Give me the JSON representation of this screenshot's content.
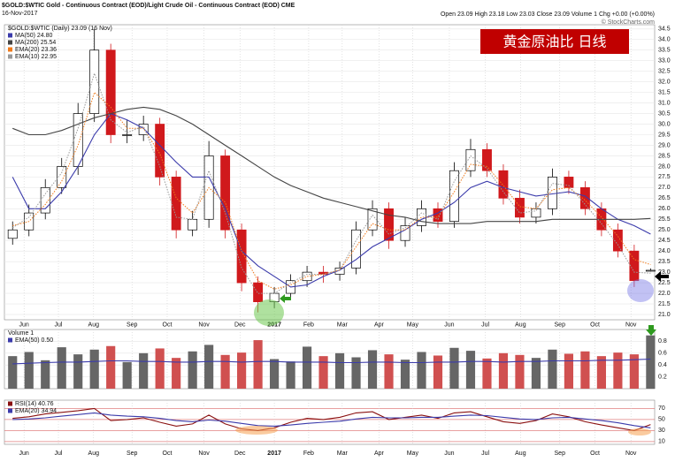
{
  "header": {
    "title": "$GOLD:$WTIC Gold - Continuous Contract (EOD)/Light Crude Oil - Continuous Contract (EOD) CME",
    "date": "16-Nov-2017",
    "quote": "Open 23.09  High 23.18  Low 23.03  Close 23.09  Volume 1  Chg +0.00 (+0.00%)",
    "credit": "© StockCharts.com"
  },
  "banner": "黄金原油比  日线",
  "chart_data": [
    {
      "type": "candlestick",
      "legend_title": "$GOLD:$WTIC (Daily) 23.09 (16 Nov)",
      "up_color": "#000000",
      "down_color": "#d0191c",
      "x": [
        1,
        3,
        5,
        7,
        9,
        11,
        13,
        15,
        17,
        19,
        21,
        23,
        25,
        27,
        29,
        31,
        33,
        35,
        37,
        39,
        41,
        43,
        45,
        47,
        49,
        51,
        53,
        55,
        57,
        59,
        61,
        63,
        65,
        67,
        69,
        71,
        73,
        75,
        77,
        79
      ],
      "open": [
        24.6,
        25.0,
        25.8,
        27.0,
        28.0,
        30.5,
        33.5,
        29.5,
        29.5,
        30.0,
        27.5,
        25.0,
        25.5,
        28.5,
        25.0,
        22.5,
        21.6,
        22.0,
        22.6,
        23.0,
        22.9,
        23.2,
        25.0,
        26.0,
        24.5,
        25.2,
        26.0,
        25.4,
        27.8,
        28.8,
        27.8,
        26.5,
        25.6,
        26.0,
        27.5,
        27.0,
        26.0,
        25.0,
        24.0,
        23.09
      ],
      "high": [
        25.4,
        26.2,
        27.4,
        28.4,
        31.0,
        34.5,
        33.8,
        30.2,
        30.4,
        30.3,
        27.8,
        25.9,
        29.2,
        28.8,
        25.3,
        22.8,
        22.3,
        22.9,
        23.3,
        23.3,
        23.5,
        25.4,
        26.4,
        26.3,
        25.6,
        26.4,
        26.3,
        28.2,
        29.3,
        29.1,
        28.1,
        26.9,
        26.3,
        27.9,
        27.8,
        27.3,
        26.3,
        25.3,
        24.3,
        23.18
      ],
      "low": [
        24.3,
        24.7,
        25.5,
        26.7,
        27.6,
        30.1,
        29.1,
        29.1,
        29.2,
        27.1,
        24.6,
        24.7,
        25.1,
        24.6,
        22.1,
        21.1,
        21.3,
        21.7,
        22.3,
        22.5,
        22.6,
        22.9,
        24.7,
        24.1,
        24.2,
        24.9,
        25.1,
        25.1,
        27.5,
        27.5,
        26.2,
        25.3,
        25.3,
        25.7,
        26.7,
        25.7,
        24.7,
        23.7,
        22.3,
        23.03
      ],
      "close": [
        25.0,
        25.8,
        27.0,
        28.0,
        30.5,
        33.5,
        29.5,
        29.5,
        30.0,
        27.5,
        25.0,
        25.5,
        28.5,
        25.0,
        22.5,
        21.6,
        22.0,
        22.6,
        23.0,
        22.9,
        23.2,
        25.0,
        26.0,
        24.5,
        25.2,
        26.0,
        25.4,
        27.8,
        28.8,
        27.8,
        26.5,
        25.6,
        26.0,
        27.5,
        27.0,
        26.0,
        25.0,
        24.0,
        22.6,
        23.09
      ],
      "series": [
        {
          "name": "MA(50) 24.80",
          "color": "#3b3bab",
          "style": "solid",
          "values": [
            27.5,
            26.0,
            26.0,
            26.8,
            28.0,
            29.5,
            30.5,
            30.2,
            29.8,
            29.0,
            28.2,
            27.5,
            27.5,
            26.0,
            24.0,
            23.3,
            22.8,
            22.3,
            22.4,
            22.8,
            23.1,
            23.6,
            24.2,
            24.6,
            25.0,
            25.5,
            25.8,
            26.3,
            27.0,
            27.3,
            27.0,
            26.8,
            26.6,
            26.7,
            26.8,
            26.6,
            26.0,
            25.5,
            25.2,
            24.8
          ]
        },
        {
          "name": "MA(200) 25.54",
          "color": "#444444",
          "style": "solid",
          "values": [
            29.8,
            29.5,
            29.5,
            29.7,
            30.0,
            30.3,
            30.5,
            30.7,
            30.8,
            30.7,
            30.4,
            30.0,
            29.5,
            29.0,
            28.5,
            28.0,
            27.5,
            27.1,
            26.8,
            26.5,
            26.3,
            26.1,
            25.9,
            25.7,
            25.6,
            25.4,
            25.3,
            25.3,
            25.3,
            25.4,
            25.4,
            25.4,
            25.4,
            25.5,
            25.5,
            25.5,
            25.5,
            25.5,
            25.5,
            25.54
          ]
        },
        {
          "name": "EMA(20) 23.36",
          "color": "#f07a1a",
          "style": "dotted",
          "values": [
            25.2,
            25.4,
            26.2,
            27.3,
            29.0,
            31.5,
            30.8,
            29.8,
            29.8,
            28.6,
            26.5,
            25.8,
            27.0,
            26.3,
            24.0,
            22.6,
            22.2,
            22.4,
            22.8,
            22.9,
            23.1,
            24.2,
            25.3,
            25.0,
            25.0,
            25.6,
            25.6,
            26.8,
            28.1,
            28.0,
            27.1,
            26.1,
            26.0,
            26.9,
            27.0,
            26.4,
            25.6,
            24.7,
            23.6,
            23.36
          ]
        },
        {
          "name": "EMA(10) 22.95",
          "color": "#999999",
          "style": "dotted",
          "values": [
            25.1,
            25.6,
            26.7,
            27.7,
            29.8,
            32.4,
            30.2,
            29.6,
            29.9,
            28.0,
            25.6,
            25.5,
            27.8,
            25.8,
            23.2,
            22.0,
            22.0,
            22.5,
            22.9,
            22.9,
            23.1,
            24.5,
            25.7,
            24.8,
            25.1,
            25.8,
            25.5,
            27.3,
            28.5,
            27.9,
            26.8,
            25.8,
            25.9,
            27.2,
            27.1,
            26.2,
            25.3,
            24.3,
            23.0,
            22.95
          ]
        }
      ],
      "xlim": [
        0,
        79.5
      ],
      "xticks": [
        {
          "value": 2.4,
          "label": "Jun"
        },
        {
          "value": 6.6,
          "label": "Jul"
        },
        {
          "value": 10.9,
          "label": "Aug"
        },
        {
          "value": 15.6,
          "label": "Sep"
        },
        {
          "value": 19.9,
          "label": "Oct"
        },
        {
          "value": 24.4,
          "label": "Nov"
        },
        {
          "value": 28.8,
          "label": "Dec"
        },
        {
          "value": 33,
          "label": "2017"
        },
        {
          "value": 37.2,
          "label": "Feb"
        },
        {
          "value": 41.3,
          "label": "Mar"
        },
        {
          "value": 45.8,
          "label": "Apr"
        },
        {
          "value": 49.9,
          "label": "May"
        },
        {
          "value": 54.4,
          "label": "Jun"
        },
        {
          "value": 58.8,
          "label": "Jul"
        },
        {
          "value": 63.1,
          "label": "Aug"
        },
        {
          "value": 67.9,
          "label": "Sep"
        },
        {
          "value": 72.2,
          "label": "Oct"
        },
        {
          "value": 76.6,
          "label": "Nov"
        }
      ],
      "ylim": [
        20.75,
        34.7
      ],
      "yticks": [
        {
          "value": 21,
          "label": "21.0"
        },
        21.5,
        {
          "value": 22,
          "label": "22.0"
        },
        22.5,
        {
          "value": 23,
          "label": "23.0"
        },
        23.5,
        {
          "value": 24,
          "label": "24.0"
        },
        24.5,
        {
          "value": 25,
          "label": "25.0"
        },
        25.5,
        {
          "value": 26,
          "label": "26.0"
        },
        26.5,
        {
          "value": 27,
          "label": "27.0"
        },
        27.5,
        {
          "value": 28,
          "label": "28.0"
        },
        28.5,
        {
          "value": 29,
          "label": "29.0"
        },
        29.5,
        {
          "value": 30,
          "label": "30.0"
        },
        30.5,
        {
          "value": 31,
          "label": "31.0"
        },
        31.5,
        {
          "value": 32,
          "label": "32.0"
        },
        32.5,
        {
          "value": 33,
          "label": "33.0"
        },
        33.5,
        {
          "value": 34,
          "label": "34.0"
        },
        34.5
      ],
      "grid": true
    },
    {
      "type": "bar",
      "legend_title": "Volume 1",
      "values": [
        0.55,
        0.62,
        0.48,
        0.7,
        0.58,
        0.66,
        0.72,
        0.45,
        0.6,
        0.68,
        0.52,
        0.63,
        0.74,
        0.57,
        0.61,
        0.82,
        0.5,
        0.46,
        0.71,
        0.55,
        0.6,
        0.53,
        0.65,
        0.58,
        0.49,
        0.62,
        0.56,
        0.69,
        0.64,
        0.51,
        0.6,
        0.57,
        0.52,
        0.66,
        0.59,
        0.63,
        0.55,
        0.61,
        0.58,
        0.9
      ],
      "series": [
        {
          "name": "EMA(50) 0.50",
          "color": "#3b3bab",
          "style": "solid",
          "values": [
            0.42,
            0.43,
            0.44,
            0.45,
            0.45,
            0.46,
            0.47,
            0.47,
            0.46,
            0.46,
            0.45,
            0.45,
            0.46,
            0.46,
            0.45,
            0.46,
            0.46,
            0.45,
            0.45,
            0.45,
            0.44,
            0.44,
            0.45,
            0.45,
            0.44,
            0.44,
            0.45,
            0.45,
            0.46,
            0.46,
            0.45,
            0.46,
            0.46,
            0.47,
            0.47,
            0.47,
            0.48,
            0.48,
            0.49,
            0.5
          ]
        }
      ],
      "ylim": [
        0,
        1.0
      ],
      "yticks": [
        0.2,
        0.4,
        0.6,
        0.8
      ],
      "grid": true
    },
    {
      "type": "line",
      "series": [
        {
          "name": "RSI(14) 40.76",
          "color": "#8a1010",
          "style": "solid",
          "values": [
            52,
            55,
            60,
            63,
            66,
            70,
            48,
            50,
            53,
            45,
            38,
            42,
            58,
            42,
            33,
            30,
            35,
            45,
            52,
            50,
            54,
            62,
            64,
            50,
            54,
            58,
            52,
            62,
            64,
            55,
            46,
            43,
            48,
            60,
            55,
            46,
            40,
            35,
            30,
            40.76
          ]
        },
        {
          "name": "EMA(20) 34.94",
          "color": "#3b3bab",
          "style": "solid",
          "values": [
            50,
            51,
            53,
            56,
            59,
            62,
            58,
            56,
            55,
            52,
            48,
            46,
            49,
            47,
            43,
            39,
            38,
            40,
            43,
            45,
            47,
            51,
            54,
            53,
            53,
            54,
            54,
            56,
            58,
            57,
            54,
            51,
            50,
            53,
            54,
            51,
            48,
            44,
            39,
            34.94
          ]
        }
      ],
      "ylim": [
        5,
        85
      ],
      "yticks": [
        10,
        30,
        50,
        70
      ],
      "grid": true
    }
  ]
}
